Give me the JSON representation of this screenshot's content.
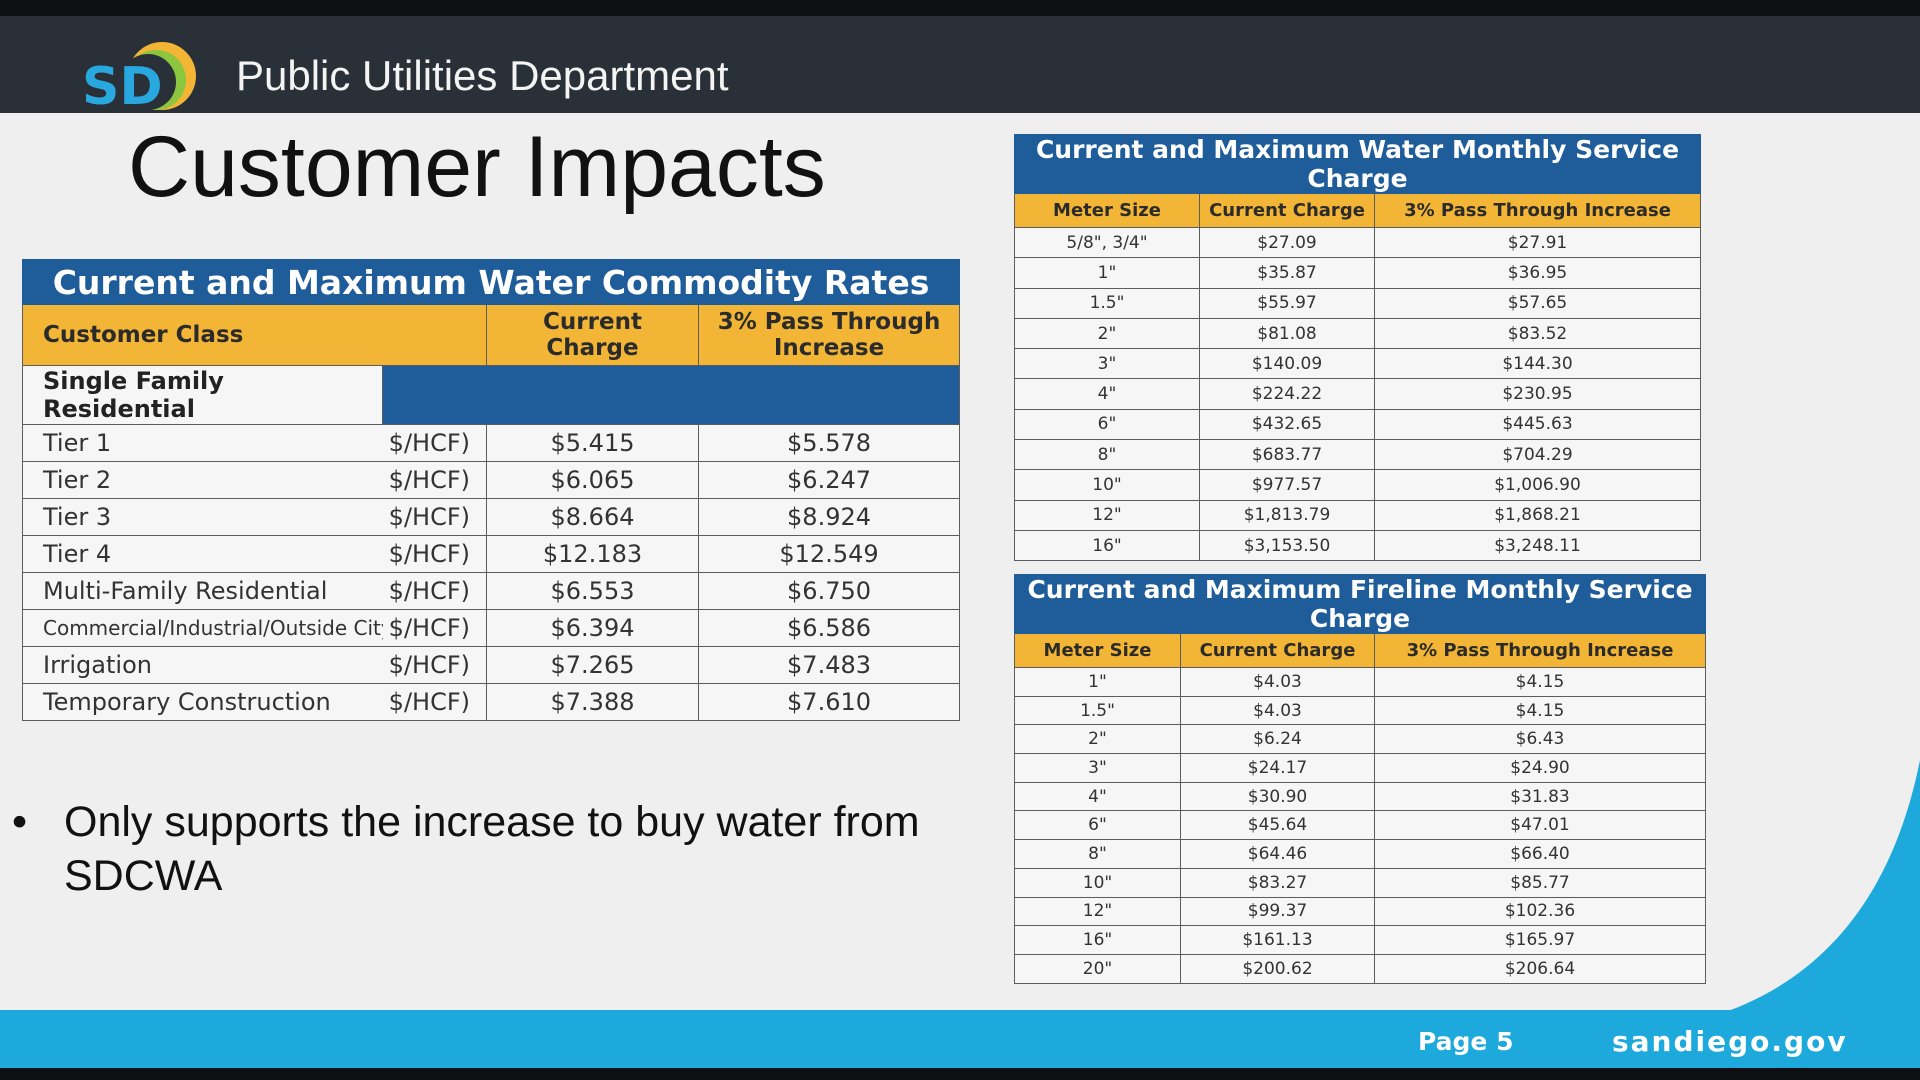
{
  "header": {
    "logo_text": "SD",
    "department": "Public Utilities Department"
  },
  "title": "Customer Impacts",
  "colors": {
    "header_bg": "#2a3037",
    "table_blue": "#1f5c9a",
    "table_gold": "#f2b535",
    "footer_blue": "#1da9dc"
  },
  "commodity": {
    "caption": "Current and Maximum Water Commodity Rates",
    "headers": [
      "Customer Class",
      "Current Charge",
      "3% Pass Through Increase"
    ],
    "group": "Single Family Residential",
    "rows": [
      {
        "name": "Tier 1",
        "unit": "$/HCF)",
        "current": "$5.415",
        "increase": "$5.578"
      },
      {
        "name": "Tier 2",
        "unit": "$/HCF)",
        "current": "$6.065",
        "increase": "$6.247"
      },
      {
        "name": "Tier 3",
        "unit": "$/HCF)",
        "current": "$8.664",
        "increase": "$8.924"
      },
      {
        "name": "Tier 4",
        "unit": "$/HCF)",
        "current": "$12.183",
        "increase": "$12.549"
      },
      {
        "name": "Multi-Family Residential",
        "unit": "$/HCF)",
        "current": "$6.553",
        "increase": "$6.750"
      },
      {
        "name": "Commercial/Industrial/Outside City",
        "unit": "$/HCF)",
        "current": "$6.394",
        "increase": "$6.586"
      },
      {
        "name": "Irrigation",
        "unit": "$/HCF)",
        "current": "$7.265",
        "increase": "$7.483"
      },
      {
        "name": "Temporary Construction",
        "unit": "$/HCF)",
        "current": "$7.388",
        "increase": "$7.610"
      }
    ]
  },
  "water_service": {
    "caption": "Current and Maximum Water Monthly Service Charge",
    "headers": [
      "Meter Size",
      "Current Charge",
      "3% Pass Through Increase"
    ],
    "rows": [
      [
        "5/8\", 3/4\"",
        "$27.09",
        "$27.91"
      ],
      [
        "1\"",
        "$35.87",
        "$36.95"
      ],
      [
        "1.5\"",
        "$55.97",
        "$57.65"
      ],
      [
        "2\"",
        "$81.08",
        "$83.52"
      ],
      [
        "3\"",
        "$140.09",
        "$144.30"
      ],
      [
        "4\"",
        "$224.22",
        "$230.95"
      ],
      [
        "6\"",
        "$432.65",
        "$445.63"
      ],
      [
        "8\"",
        "$683.77",
        "$704.29"
      ],
      [
        "10\"",
        "$977.57",
        "$1,006.90"
      ],
      [
        "12\"",
        "$1,813.79",
        "$1,868.21"
      ],
      [
        "16\"",
        "$3,153.50",
        "$3,248.11"
      ]
    ]
  },
  "fireline_service": {
    "caption": "Current and Maximum Fireline Monthly Service Charge",
    "headers": [
      "Meter Size",
      "Current Charge",
      "3% Pass Through Increase"
    ],
    "rows": [
      [
        "1\"",
        "$4.03",
        "$4.15"
      ],
      [
        "1.5\"",
        "$4.03",
        "$4.15"
      ],
      [
        "2\"",
        "$6.24",
        "$6.43"
      ],
      [
        "3\"",
        "$24.17",
        "$24.90"
      ],
      [
        "4\"",
        "$30.90",
        "$31.83"
      ],
      [
        "6\"",
        "$45.64",
        "$47.01"
      ],
      [
        "8\"",
        "$64.46",
        "$66.40"
      ],
      [
        "10\"",
        "$83.27",
        "$85.77"
      ],
      [
        "12\"",
        "$99.37",
        "$102.36"
      ],
      [
        "16\"",
        "$161.13",
        "$165.97"
      ],
      [
        "20\"",
        "$200.62",
        "$206.64"
      ]
    ]
  },
  "bullet": {
    "symbol": "•",
    "text": "Only supports the increase to buy water from SDCWA"
  },
  "footer": {
    "page": "Page 5",
    "site": "sandiego.gov"
  }
}
